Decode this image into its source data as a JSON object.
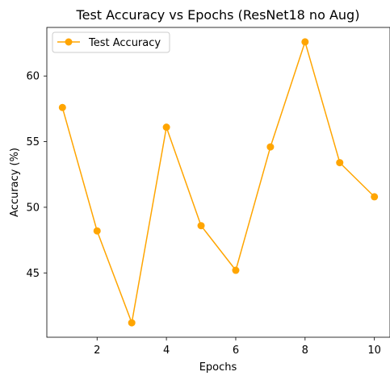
{
  "chart_data": {
    "type": "line",
    "title": "Test Accuracy vs Epochs (ResNet18 no Aug)",
    "xlabel": "Epochs",
    "ylabel": "Accuracy (%)",
    "xlim": [
      0.55,
      10.45
    ],
    "ylim": [
      40.1,
      63.7
    ],
    "xticks": [
      2,
      4,
      6,
      8,
      10
    ],
    "yticks": [
      45,
      50,
      55,
      60
    ],
    "grid": false,
    "legend_position": "upper-left",
    "series": [
      {
        "name": "Test Accuracy",
        "color": "#FFA500",
        "marker": "circle",
        "x": [
          1,
          2,
          3,
          4,
          5,
          6,
          7,
          8,
          9,
          10
        ],
        "y": [
          57.6,
          48.2,
          41.2,
          56.1,
          48.6,
          45.2,
          54.6,
          62.6,
          53.4,
          50.8
        ]
      }
    ]
  }
}
